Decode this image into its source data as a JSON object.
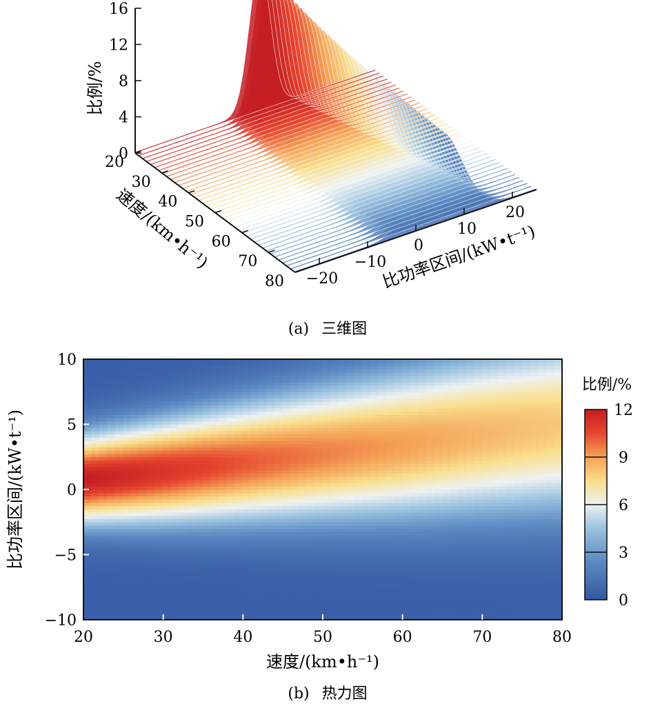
{
  "chart_data": [
    {
      "type": "surface3d",
      "panel": "(a)",
      "caption": "三维图",
      "title": "",
      "x_axis": {
        "label": "速度/(km•h⁻¹)",
        "ticks": [
          20,
          30,
          40,
          50,
          60,
          70,
          80
        ],
        "range": [
          20,
          80
        ]
      },
      "y_axis": {
        "label": "比功率区间/(kW•t⁻¹)",
        "ticks": [
          -20,
          -10,
          0,
          10,
          20
        ],
        "range": [
          -25,
          25
        ]
      },
      "z_axis": {
        "label": "比例/%",
        "ticks": [
          0,
          4,
          8,
          12,
          16
        ],
        "range": [
          0,
          16
        ]
      },
      "description_of_values": "Peak ratio ~15.5% near 0 kW/t at 20 km/h, decaying and broadening with speed (~7.5% at 80 km/h), peak drifting toward ~5 kW/t."
    },
    {
      "type": "heatmap",
      "panel": "(b)",
      "caption": "热力图",
      "title": "",
      "xlabel": "速度/(km•h⁻¹)",
      "ylabel": "比功率区间/(kW•t⁻¹)",
      "xlim": [
        20,
        80
      ],
      "ylim": [
        -10,
        10
      ],
      "xticks": [
        20,
        30,
        40,
        50,
        60,
        70,
        80
      ],
      "yticks": [
        -10,
        -5,
        0,
        5,
        10
      ],
      "colorbar": {
        "label": "比例/%",
        "ticks": [
          0,
          3,
          6,
          9,
          12
        ],
        "range": [
          0,
          12
        ]
      },
      "ridge": {
        "speed": [
          20,
          30,
          40,
          50,
          60,
          70,
          80
        ],
        "peak_power": [
          0.8,
          1.4,
          2.1,
          2.8,
          3.5,
          4.3,
          5.0
        ],
        "peak_ratio": [
          12.0,
          11.0,
          10.0,
          9.2,
          8.6,
          8.0,
          7.5
        ]
      }
    }
  ],
  "colors": {
    "stops": [
      "#3b5ea8",
      "#5b8ac2",
      "#9cc3e0",
      "#eef2f2",
      "#f9df8e",
      "#f4a257",
      "#e5452e",
      "#c41d24"
    ]
  }
}
